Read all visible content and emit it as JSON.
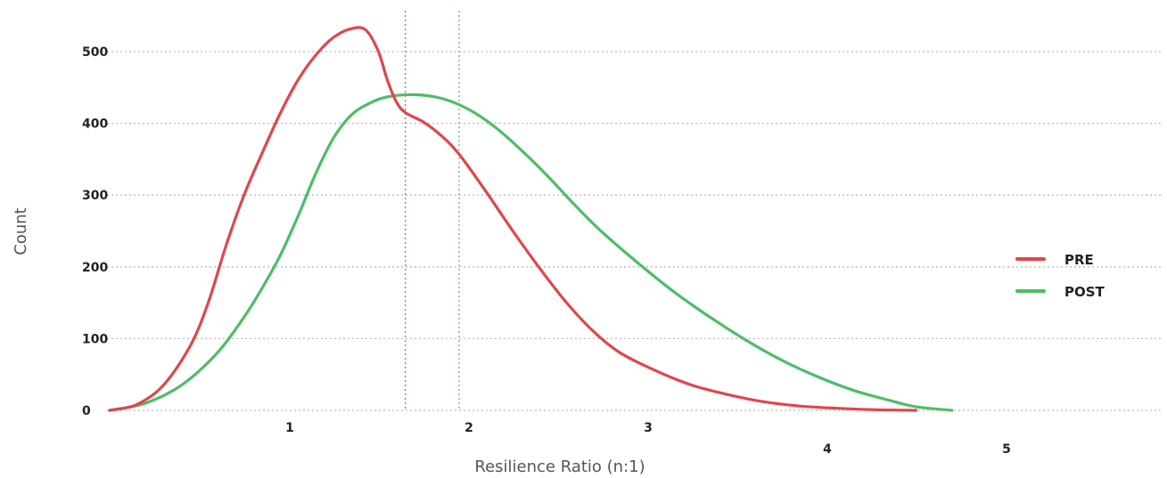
{
  "chart_data": {
    "type": "line",
    "title": "",
    "xlabel": "Resilience Ratio (n:1)",
    "ylabel": "Count",
    "xlim": [
      0.25,
      5.9
    ],
    "ylim": [
      0,
      540
    ],
    "y_ticks": [
      0,
      100,
      200,
      300,
      400,
      500
    ],
    "y_tick_labels": [
      "0",
      "100",
      "200",
      "300",
      "400",
      "500"
    ],
    "x_tick_labels": [
      "1",
      "2",
      "3",
      "4",
      "5"
    ],
    "grid": "horizontal dotted",
    "legend_position": "right",
    "series": [
      {
        "name": "PRE",
        "color": "#e0464b",
        "marker_line": 1.9,
        "points": [
          [
            0.25,
            0
          ],
          [
            0.4,
            8
          ],
          [
            0.55,
            35
          ],
          [
            0.7,
            90
          ],
          [
            0.8,
            150
          ],
          [
            0.9,
            230
          ],
          [
            1.0,
            300
          ],
          [
            1.1,
            358
          ],
          [
            1.2,
            413
          ],
          [
            1.3,
            460
          ],
          [
            1.4,
            495
          ],
          [
            1.5,
            520
          ],
          [
            1.6,
            532
          ],
          [
            1.68,
            530
          ],
          [
            1.75,
            500
          ],
          [
            1.8,
            460
          ],
          [
            1.85,
            430
          ],
          [
            1.9,
            415
          ],
          [
            2.0,
            402
          ],
          [
            2.1,
            383
          ],
          [
            2.2,
            357
          ],
          [
            2.35,
            305
          ],
          [
            2.5,
            250
          ],
          [
            2.65,
            198
          ],
          [
            2.8,
            150
          ],
          [
            2.95,
            110
          ],
          [
            3.1,
            80
          ],
          [
            3.3,
            55
          ],
          [
            3.5,
            35
          ],
          [
            3.7,
            22
          ],
          [
            3.9,
            12
          ],
          [
            4.1,
            6
          ],
          [
            4.3,
            3
          ],
          [
            4.5,
            1
          ],
          [
            4.75,
            0
          ]
        ]
      },
      {
        "name": "POST",
        "color": "#4dbd67",
        "marker_line": 2.2,
        "points": [
          [
            0.25,
            0
          ],
          [
            0.45,
            10
          ],
          [
            0.65,
            35
          ],
          [
            0.85,
            80
          ],
          [
            1.0,
            130
          ],
          [
            1.1,
            170
          ],
          [
            1.2,
            215
          ],
          [
            1.3,
            270
          ],
          [
            1.4,
            330
          ],
          [
            1.5,
            380
          ],
          [
            1.6,
            412
          ],
          [
            1.7,
            428
          ],
          [
            1.8,
            437
          ],
          [
            1.95,
            440
          ],
          [
            2.1,
            435
          ],
          [
            2.25,
            420
          ],
          [
            2.4,
            395
          ],
          [
            2.55,
            362
          ],
          [
            2.7,
            325
          ],
          [
            2.85,
            285
          ],
          [
            3.0,
            248
          ],
          [
            3.2,
            205
          ],
          [
            3.4,
            165
          ],
          [
            3.6,
            130
          ],
          [
            3.8,
            98
          ],
          [
            4.0,
            70
          ],
          [
            4.2,
            47
          ],
          [
            4.4,
            28
          ],
          [
            4.6,
            14
          ],
          [
            4.75,
            5
          ],
          [
            4.95,
            0
          ]
        ]
      }
    ]
  },
  "colors": {
    "pre": "#e0464b",
    "post": "#4dbd67",
    "grid": "#bbbbbb"
  }
}
